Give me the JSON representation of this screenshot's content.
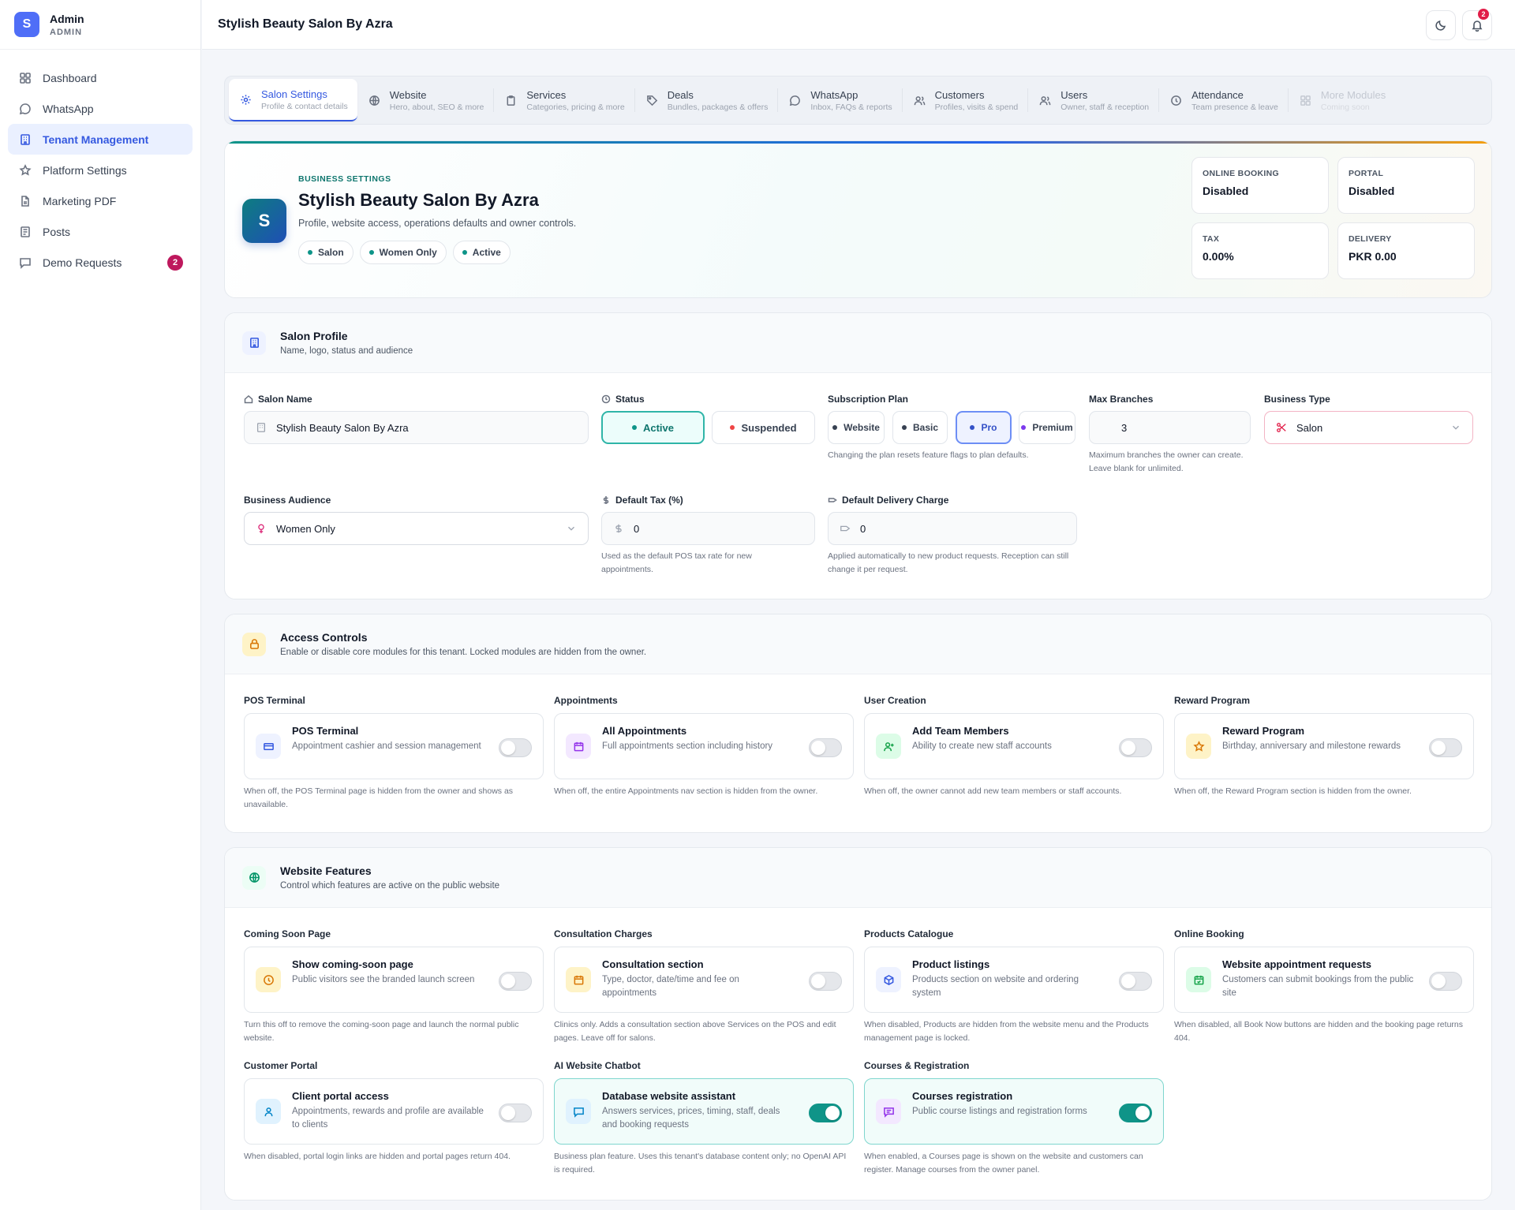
{
  "brand": {
    "initial": "S",
    "name": "Admin",
    "role": "ADMIN"
  },
  "sidebar": {
    "items": [
      {
        "label": "Dashboard",
        "icon": "grid-icon"
      },
      {
        "label": "WhatsApp",
        "icon": "chat-icon"
      },
      {
        "label": "Tenant Management",
        "icon": "building-icon",
        "active": true
      },
      {
        "label": "Platform Settings",
        "icon": "star-icon"
      },
      {
        "label": "Marketing PDF",
        "icon": "file-icon"
      },
      {
        "label": "Posts",
        "icon": "document-icon"
      },
      {
        "label": "Demo Requests",
        "icon": "message-icon",
        "badge": "2"
      }
    ]
  },
  "topbar": {
    "title": "Stylish Beauty Salon By Azra",
    "notification_count": "2"
  },
  "tabs": [
    {
      "title": "Salon Settings",
      "sub": "Profile & contact details"
    },
    {
      "title": "Website",
      "sub": "Hero, about, SEO & more"
    },
    {
      "title": "Services",
      "sub": "Categories, pricing & more"
    },
    {
      "title": "Deals",
      "sub": "Bundles, packages & offers"
    },
    {
      "title": "WhatsApp",
      "sub": "Inbox, FAQs & reports"
    },
    {
      "title": "Customers",
      "sub": "Profiles, visits & spend"
    },
    {
      "title": "Users",
      "sub": "Owner, staff & reception"
    },
    {
      "title": "Attendance",
      "sub": "Team presence & leave"
    },
    {
      "title": "More Modules",
      "sub": "Coming soon"
    }
  ],
  "hero": {
    "initial": "S",
    "kicker": "BUSINESS SETTINGS",
    "title": "Stylish Beauty Salon By Azra",
    "desc": "Profile, website access, operations defaults and owner controls.",
    "pills": [
      "Salon",
      "Women Only",
      "Active"
    ],
    "stats": [
      {
        "label": "ONLINE BOOKING",
        "value": "Disabled"
      },
      {
        "label": "PORTAL",
        "value": "Disabled"
      },
      {
        "label": "TAX",
        "value": "0.00%"
      },
      {
        "label": "DELIVERY",
        "value": "PKR 0.00"
      }
    ]
  },
  "profile": {
    "title": "Salon Profile",
    "sub": "Name, logo, status and audience",
    "name_label": "Salon Name",
    "name_value": "Stylish Beauty Salon By Azra",
    "status_label": "Status",
    "status_options": [
      "Active",
      "Suspended"
    ],
    "plan_label": "Subscription Plan",
    "plan_options": [
      "Website",
      "Basic",
      "Pro",
      "Premium"
    ],
    "plan_help": "Changing the plan resets feature flags to plan defaults.",
    "branches_label": "Max Branches",
    "branches_value": "3",
    "branches_help": "Maximum branches the owner can create. Leave blank for unlimited.",
    "type_label": "Business Type",
    "type_value": "Salon",
    "audience_label": "Business Audience",
    "audience_value": "Women Only",
    "tax_label": "Default Tax (%)",
    "tax_value": "0",
    "tax_help": "Used as the default POS tax rate for new appointments.",
    "delivery_label": "Default Delivery Charge",
    "delivery_value": "0",
    "delivery_help": "Applied automatically to new product requests. Reception can still change it per request."
  },
  "access": {
    "title": "Access Controls",
    "sub": "Enable or disable core modules for this tenant. Locked modules are hidden from the owner.",
    "items": [
      {
        "group": "POS Terminal",
        "title": "POS Terminal",
        "sub": "Appointment cashier and session management",
        "help": "When off, the POS Terminal page is hidden from the owner and shows as unavailable.",
        "on": false
      },
      {
        "group": "Appointments",
        "title": "All Appointments",
        "sub": "Full appointments section including history",
        "help": "When off, the entire Appointments nav section is hidden from the owner.",
        "on": false
      },
      {
        "group": "User Creation",
        "title": "Add Team Members",
        "sub": "Ability to create new staff accounts",
        "help": "When off, the owner cannot add new team members or staff accounts.",
        "on": false
      },
      {
        "group": "Reward Program",
        "title": "Reward Program",
        "sub": "Birthday, anniversary and milestone rewards",
        "help": "When off, the Reward Program section is hidden from the owner.",
        "on": false
      }
    ]
  },
  "website": {
    "title": "Website Features",
    "sub": "Control which features are active on the public website",
    "items": [
      {
        "group": "Coming Soon Page",
        "title": "Show coming-soon page",
        "sub": "Public visitors see the branded launch screen",
        "help": "Turn this off to remove the coming-soon page and launch the normal public website.",
        "on": false
      },
      {
        "group": "Consultation Charges",
        "title": "Consultation section",
        "sub": "Type, doctor, date/time and fee on appointments",
        "help": "Clinics only. Adds a consultation section above Services on the POS and edit pages. Leave off for salons.",
        "on": false
      },
      {
        "group": "Products Catalogue",
        "title": "Product listings",
        "sub": "Products section on website and ordering system",
        "help": "When disabled, Products are hidden from the website menu and the Products management page is locked.",
        "on": false
      },
      {
        "group": "Online Booking",
        "title": "Website appointment requests",
        "sub": "Customers can submit bookings from the public site",
        "help": "When disabled, all Book Now buttons are hidden and the booking page returns 404.",
        "on": false
      },
      {
        "group": "Customer Portal",
        "title": "Client portal access",
        "sub": "Appointments, rewards and profile are available to clients",
        "help": "When disabled, portal login links are hidden and portal pages return 404.",
        "on": false
      },
      {
        "group": "AI Website Chatbot",
        "title": "Database website assistant",
        "sub": "Answers services, prices, timing, staff, deals and booking requests",
        "help": "Business plan feature. Uses this tenant's database content only; no OpenAI API is required.",
        "on": true
      },
      {
        "group": "Courses & Registration",
        "title": "Courses registration",
        "sub": "Public course listings and registration forms",
        "help": "When enabled, a Courses page is shown on the website and customers can register. Manage courses from the owner panel.",
        "on": true
      }
    ]
  }
}
